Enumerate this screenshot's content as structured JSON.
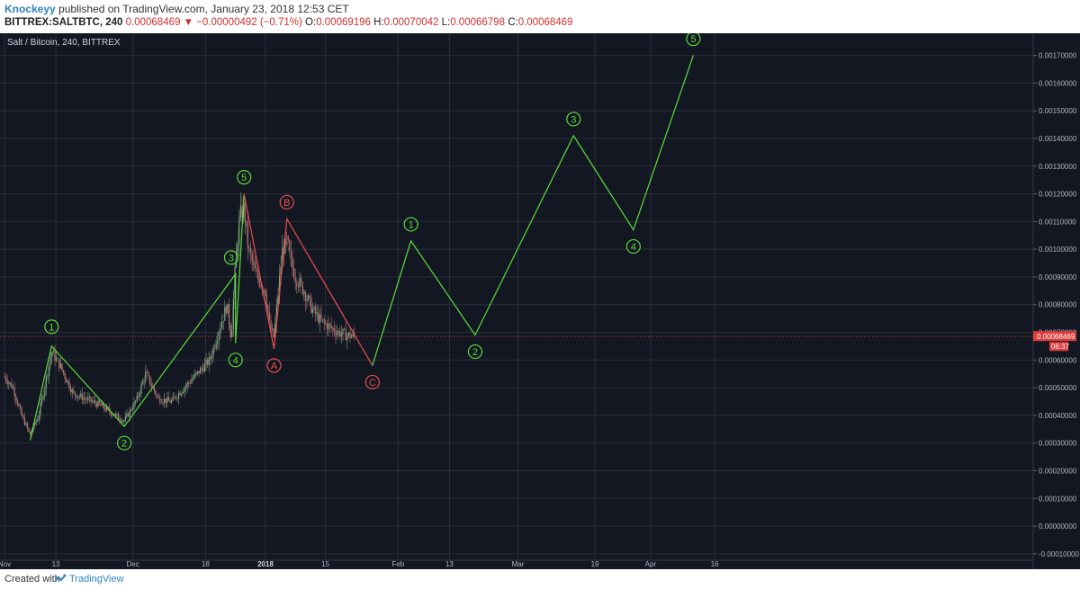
{
  "header": {
    "author": "Knockeyy",
    "published_text": "published on TradingView.com, January 23, 2018 12:53 CET",
    "symbol": "BITTREX:SALTBTC, 240",
    "last_price": "0.00068469",
    "change_arrow": "▼",
    "change": "−0.00000492 (−0.71%)",
    "open_label": "O:",
    "open": "0.00069196",
    "high_label": "H:",
    "high": "0.00070042",
    "low_label": "L:",
    "low": "0.00066798",
    "close_label": "C:",
    "close": "0.00068469"
  },
  "footer": {
    "created_with": "Created with",
    "tradingview": "TradingView"
  },
  "colors": {
    "background": "#131722",
    "grid": "#2a2e39",
    "wave_green": "#5ddb3c",
    "wave_red": "#e84e4e",
    "price_tag": "#e03c3c"
  },
  "chart_data": {
    "type": "candlestick",
    "title": "Salt / Bitcoin, 240, BITTREX",
    "x_tick_labels": [
      "Nov",
      "13",
      "Dec",
      "18",
      "2018",
      "15",
      "Feb",
      "13",
      "Mar",
      "19",
      "Apr",
      "16"
    ],
    "y_tick_labels": [
      "0.00170000",
      "0.00160000",
      "0.00150000",
      "0.00140000",
      "0.00130000",
      "0.00120000",
      "0.00110000",
      "0.00100000",
      "0.00090000",
      "0.00080000",
      "0.00070000",
      "0.00060000",
      "0.00050000",
      "0.00040000",
      "0.00030000",
      "0.00020000",
      "0.00010000",
      "0.00000000",
      "-0.00010000"
    ],
    "ylim": [
      -0.00012,
      0.00178
    ],
    "last_price": 0.00068469,
    "last_price_label": "0.00068469",
    "countdown_label": "06:37",
    "grid": true,
    "price_path": [
      [
        "Nov 1",
        0.00054
      ],
      [
        "Nov 3",
        0.0005
      ],
      [
        "Nov 5",
        0.0004
      ],
      [
        "Nov 7",
        0.00033
      ],
      [
        "Nov 9",
        0.0004
      ],
      [
        "Nov 11",
        0.00055
      ],
      [
        "Nov 12",
        0.00063
      ],
      [
        "Nov 14",
        0.00058
      ],
      [
        "Nov 17",
        0.00048
      ],
      [
        "Nov 20",
        0.00046
      ],
      [
        "Nov 23",
        0.00044
      ],
      [
        "Nov 26",
        0.00041
      ],
      [
        "Nov 29",
        0.00038
      ],
      [
        "Dec 2",
        0.00046
      ],
      [
        "Dec 4",
        0.00055
      ],
      [
        "Dec 7",
        0.00046
      ],
      [
        "Dec 10",
        0.00045
      ],
      [
        "Dec 13",
        0.0005
      ],
      [
        "Dec 16",
        0.00055
      ],
      [
        "Dec 19",
        0.0006
      ],
      [
        "Dec 21",
        0.0007
      ],
      [
        "Dec 23",
        0.0008
      ],
      [
        "Dec 24",
        0.00068
      ],
      [
        "Dec 25",
        0.00095
      ],
      [
        "Dec 26",
        0.00112
      ],
      [
        "Dec 27",
        0.00115
      ],
      [
        "Dec 28",
        0.001
      ],
      [
        "Dec 30",
        0.0009
      ],
      [
        "Jan 1",
        0.00085
      ],
      [
        "Jan 2",
        0.00072
      ],
      [
        "Jan 3",
        0.00068
      ],
      [
        "Jan 4",
        0.00085
      ],
      [
        "Jan 5",
        0.001
      ],
      [
        "Jan 6",
        0.00103
      ],
      [
        "Jan 7",
        0.00095
      ],
      [
        "Jan 8",
        0.0009
      ],
      [
        "Jan 10",
        0.00085
      ],
      [
        "Jan 12",
        0.00078
      ],
      [
        "Jan 14",
        0.00074
      ],
      [
        "Jan 16",
        0.00072
      ],
      [
        "Jan 18",
        0.0007
      ],
      [
        "Jan 20",
        0.00069
      ],
      [
        "Jan 22",
        0.00068469
      ]
    ],
    "waves": [
      {
        "color": "green",
        "points": [
          [
            "Nov 7",
            0.00031
          ],
          [
            "Nov 12",
            0.00065
          ],
          [
            "Nov 29",
            0.00036
          ],
          [
            "Dec 25",
            0.00091
          ],
          [
            "Dec 25",
            0.00066
          ],
          [
            "Dec 27",
            0.0012
          ]
        ],
        "labels": [
          {
            "text": "1",
            "x": "Nov 12",
            "y": 0.00072
          },
          {
            "text": "2",
            "x": "Nov 29",
            "y": 0.0003
          },
          {
            "text": "3",
            "x": "Dec 24",
            "y": 0.00097
          },
          {
            "text": "4",
            "x": "Dec 25",
            "y": 0.0006
          },
          {
            "text": "5",
            "x": "Dec 27",
            "y": 0.00126
          }
        ]
      },
      {
        "color": "red",
        "points": [
          [
            "Dec 27",
            0.0012
          ],
          [
            "Jan 3",
            0.00064
          ],
          [
            "Jan 6",
            0.00111
          ],
          [
            "Jan 26",
            0.00058
          ]
        ],
        "labels": [
          {
            "text": "A",
            "x": "Jan 3",
            "y": 0.00058
          },
          {
            "text": "B",
            "x": "Jan 6",
            "y": 0.00117
          },
          {
            "text": "C",
            "x": "Jan 26",
            "y": 0.00052
          }
        ]
      },
      {
        "color": "green",
        "points": [
          [
            "Jan 26",
            0.00058
          ],
          [
            "Feb 4",
            0.00103
          ],
          [
            "Feb 19",
            0.00069
          ],
          [
            "Mar 14",
            0.00141
          ],
          [
            "Mar 28",
            0.00107
          ],
          [
            "Apr 11",
            0.0017
          ]
        ],
        "labels": [
          {
            "text": "1",
            "x": "Feb 4",
            "y": 0.00109
          },
          {
            "text": "2",
            "x": "Feb 19",
            "y": 0.00063
          },
          {
            "text": "3",
            "x": "Mar 14",
            "y": 0.00147
          },
          {
            "text": "4",
            "x": "Mar 28",
            "y": 0.00101
          },
          {
            "text": "5",
            "x": "Apr 11",
            "y": 0.00176
          }
        ]
      }
    ]
  }
}
